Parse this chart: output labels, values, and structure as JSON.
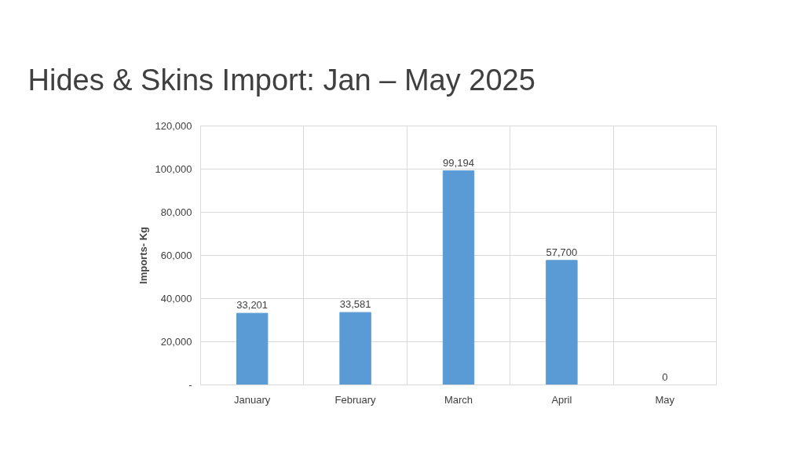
{
  "chart_data": {
    "type": "bar",
    "title": "Hides & Skins Import: Jan – May 2025",
    "ylabel": "Imports- Kg",
    "categories": [
      "January",
      "February",
      "March",
      "April",
      "May"
    ],
    "values": [
      33201,
      33581,
      99194,
      57700,
      0
    ],
    "color": "#5b9bd5",
    "ylim": [
      0,
      120000
    ],
    "yticks": [
      {
        "value": 0,
        "label": "-"
      },
      {
        "value": 20000,
        "label": "20,000"
      },
      {
        "value": 40000,
        "label": "40,000"
      },
      {
        "value": 60000,
        "label": "60,000"
      },
      {
        "value": 80000,
        "label": "80,000"
      },
      {
        "value": 100000,
        "label": "100,000"
      },
      {
        "value": 120000,
        "label": "120,000"
      }
    ],
    "value_labels": [
      "33,201",
      "33,581",
      "99,194",
      "57,700",
      "0"
    ],
    "grid": true
  }
}
